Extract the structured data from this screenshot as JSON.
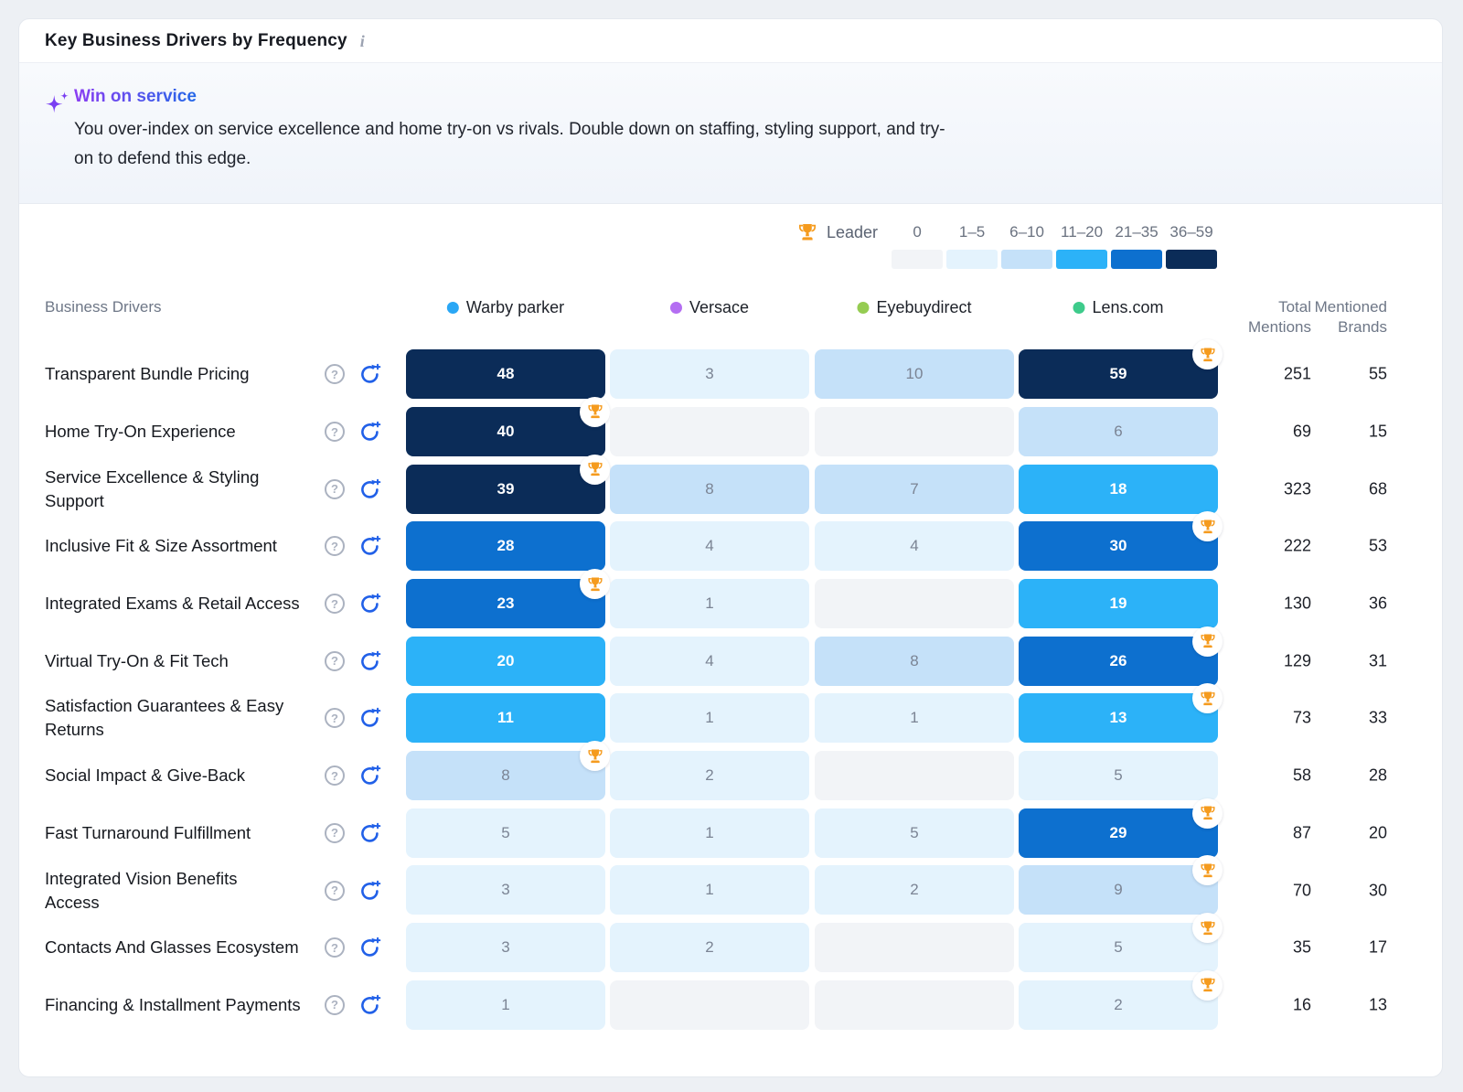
{
  "card": {
    "title": "Key Business Drivers by Frequency"
  },
  "icons": {
    "info": "i",
    "help": "?"
  },
  "colors": {
    "trophy": "#F59B1E",
    "refresh_icon": "#2160E8",
    "sparkle": "#7A3FF2",
    "insight_title_gradient_start": "#8B3DF2",
    "insight_title_gradient_end": "#2468E8",
    "zero_cell": "#F2F4F7"
  },
  "insight": {
    "title": "Win on service",
    "body": "You over-index on service excellence and home try-on vs rivals. Double down on staffing, styling support, and try-on to defend this edge."
  },
  "legend": {
    "leader_label": "Leader",
    "bins": [
      {
        "label": "0",
        "max": 0,
        "color": "#f2f4f7"
      },
      {
        "label": "1–5",
        "max": 5,
        "color": "#e4f3fd"
      },
      {
        "label": "6–10",
        "max": 10,
        "color": "#c5e1f9"
      },
      {
        "label": "11–20",
        "max": 20,
        "color": "#2cb2f8"
      },
      {
        "label": "21–35",
        "max": 35,
        "color": "#0d70cf"
      },
      {
        "label": "36–59",
        "max": 59,
        "color": "#0b2c58"
      }
    ]
  },
  "table": {
    "col_header": "Business Drivers",
    "total_header": "Total\nMentions",
    "brands_header": "Mentioned\nBrands",
    "brands": [
      {
        "name": "Warby parker",
        "dot": "#2aa7f5"
      },
      {
        "name": "Versace",
        "dot": "#b46ef2"
      },
      {
        "name": "Eyebuydirect",
        "dot": "#95cc52"
      },
      {
        "name": "Lens.com",
        "dot": "#3ecb8b"
      }
    ]
  },
  "chart_data": {
    "type": "heatmap",
    "title": "Key Business Drivers by Frequency",
    "columns": [
      "Warby parker",
      "Versace",
      "Eyebuydirect",
      "Lens.com"
    ],
    "rows": [
      "Transparent Bundle Pricing",
      "Home Try-On Experience",
      "Service Excellence & Styling\nSupport",
      "Inclusive Fit & Size Assortment",
      "Integrated Exams & Retail Access",
      "Virtual Try-On & Fit Tech",
      "Satisfaction Guarantees & Easy\nReturns",
      "Social Impact & Give-Back",
      "Fast Turnaround Fulfillment",
      "Integrated Vision Benefits\nAccess",
      "Contacts And Glasses Ecosystem",
      "Financing & Installment Payments"
    ],
    "values": [
      [
        48,
        3,
        10,
        59
      ],
      [
        40,
        0,
        0,
        6
      ],
      [
        39,
        8,
        7,
        18
      ],
      [
        28,
        4,
        4,
        30
      ],
      [
        23,
        1,
        0,
        19
      ],
      [
        20,
        4,
        8,
        26
      ],
      [
        11,
        1,
        1,
        13
      ],
      [
        8,
        2,
        0,
        5
      ],
      [
        5,
        1,
        5,
        29
      ],
      [
        3,
        1,
        2,
        9
      ],
      [
        3,
        2,
        0,
        5
      ],
      [
        1,
        0,
        0,
        2
      ]
    ],
    "leader_column_index": [
      3,
      0,
      0,
      3,
      0,
      3,
      3,
      0,
      3,
      3,
      3,
      3
    ],
    "total_mentions": [
      251,
      69,
      323,
      222,
      130,
      129,
      73,
      58,
      87,
      70,
      35,
      16
    ],
    "mentioned_brands": [
      55,
      15,
      68,
      53,
      36,
      31,
      33,
      28,
      20,
      30,
      17,
      13
    ],
    "legend_bins": [
      "0",
      "1–5",
      "6–10",
      "11–20",
      "21–35",
      "36–59"
    ],
    "legend_position": "top-right"
  }
}
